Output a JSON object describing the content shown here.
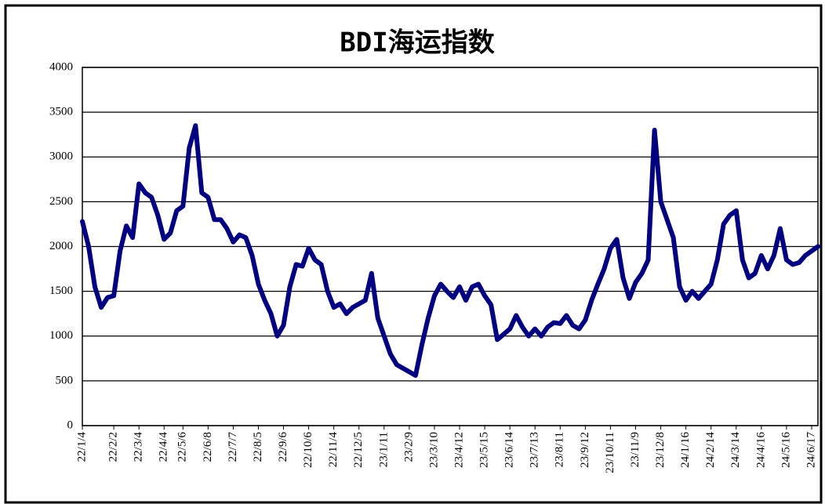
{
  "chart_data": {
    "type": "line",
    "title": "BDI海运指数",
    "categories": [
      "22/1/4",
      null,
      null,
      null,
      null,
      "22/2/2",
      null,
      null,
      null,
      "22/3/4",
      null,
      null,
      null,
      "22/4/4",
      null,
      null,
      "22/5/6",
      null,
      null,
      null,
      "22/6/8",
      null,
      null,
      null,
      "22/7/7",
      null,
      null,
      null,
      "22/8/5",
      null,
      null,
      null,
      "22/9/6",
      null,
      null,
      null,
      "22/10/6",
      null,
      null,
      null,
      "22/11/4",
      null,
      null,
      null,
      "22/12/5",
      null,
      null,
      null,
      "23/1/11",
      null,
      null,
      null,
      "23/2/9",
      null,
      null,
      null,
      "23/3/10",
      null,
      null,
      null,
      "23/4/12",
      null,
      null,
      null,
      "23/5/15",
      null,
      null,
      null,
      "23/6/14",
      null,
      null,
      null,
      "23/7/13",
      null,
      null,
      null,
      "23/8/11",
      null,
      null,
      null,
      "23/9/12",
      null,
      null,
      null,
      "23/10/11",
      null,
      null,
      null,
      "23/11/9",
      null,
      null,
      null,
      "23/12/8",
      null,
      null,
      null,
      "24/1/16",
      null,
      null,
      null,
      "24/2/14",
      null,
      null,
      null,
      "24/3/14",
      null,
      null,
      null,
      "24/4/16",
      null,
      null,
      null,
      "24/5/16",
      null,
      null,
      null,
      "24/6/17",
      null
    ],
    "values": [
      2280,
      2000,
      1550,
      1320,
      1430,
      1450,
      1950,
      2230,
      2100,
      2700,
      2600,
      2550,
      2350,
      2080,
      2150,
      2400,
      2450,
      3100,
      3350,
      2600,
      2550,
      2300,
      2300,
      2200,
      2050,
      2130,
      2100,
      1900,
      1580,
      1400,
      1250,
      1000,
      1120,
      1550,
      1800,
      1780,
      1980,
      1850,
      1800,
      1500,
      1320,
      1360,
      1250,
      1320,
      1360,
      1400,
      1700,
      1200,
      1000,
      800,
      680,
      640,
      600,
      560,
      900,
      1200,
      1450,
      1580,
      1500,
      1430,
      1550,
      1400,
      1550,
      1580,
      1450,
      1350,
      960,
      1020,
      1080,
      1230,
      1100,
      1000,
      1080,
      1000,
      1100,
      1150,
      1140,
      1230,
      1120,
      1080,
      1180,
      1400,
      1580,
      1750,
      1980,
      2080,
      1650,
      1420,
      1600,
      1700,
      1850,
      3300,
      2500,
      2300,
      2100,
      1550,
      1400,
      1500,
      1420,
      1500,
      1580,
      1850,
      2250,
      2350,
      2400,
      1850,
      1650,
      1700,
      1900,
      1750,
      1900,
      2200,
      1850,
      1800,
      1820,
      1900,
      1950,
      2000
    ],
    "color": "#000080",
    "ylim": [
      0,
      4000
    ],
    "yticks": [
      0,
      500,
      1000,
      1500,
      2000,
      2500,
      3000,
      3500,
      4000
    ],
    "grid": true
  }
}
